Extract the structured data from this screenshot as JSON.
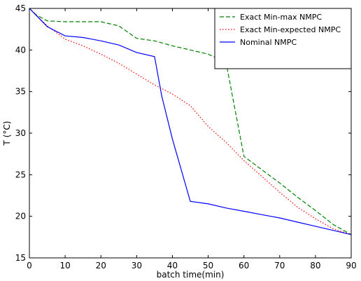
{
  "chart_data": {
    "type": "line",
    "title": "",
    "xlabel": "batch time(min)",
    "ylabel": "T (°C)",
    "xlim": [
      0,
      90
    ],
    "ylim": [
      15,
      45
    ],
    "xticks": [
      0,
      10,
      20,
      30,
      40,
      50,
      60,
      70,
      80,
      90
    ],
    "yticks": [
      15,
      20,
      25,
      30,
      35,
      40,
      45
    ],
    "grid": false,
    "legend_position": "top-right",
    "series": [
      {
        "name": "Exact Min-max NMPC",
        "color": "#008000",
        "line_style": "dashed",
        "x": [
          0,
          2,
          5,
          10,
          15,
          20,
          25,
          30,
          35,
          40,
          45,
          50,
          55,
          60,
          65,
          70,
          75,
          80,
          85,
          90
        ],
        "y": [
          45,
          44.2,
          43.5,
          43.4,
          43.4,
          43.4,
          42.9,
          41.4,
          41.1,
          40.5,
          40.0,
          39.5,
          38.5,
          27.2,
          25.6,
          24.0,
          22.3,
          20.7,
          19.0,
          17.8
        ]
      },
      {
        "name": "Exact Min-expected NMPC",
        "color": "#ff0000",
        "line_style": "dotted",
        "x": [
          0,
          5,
          10,
          15,
          20,
          25,
          30,
          35,
          40,
          45,
          50,
          55,
          60,
          65,
          70,
          75,
          80,
          85,
          90
        ],
        "y": [
          45,
          42.9,
          41.3,
          40.5,
          39.5,
          38.4,
          37.1,
          35.8,
          34.7,
          33.3,
          30.8,
          28.9,
          26.7,
          24.8,
          22.9,
          21.1,
          19.7,
          18.5,
          17.8
        ]
      },
      {
        "name": "Nominal NMPC",
        "color": "#0000ff",
        "line_style": "solid",
        "x": [
          0,
          5,
          10,
          15,
          20,
          25,
          30,
          35,
          37,
          40,
          45,
          50,
          55,
          60,
          65,
          70,
          75,
          80,
          85,
          90
        ],
        "y": [
          45,
          42.8,
          41.7,
          41.5,
          41.1,
          40.6,
          39.7,
          39.2,
          34.5,
          29.3,
          21.8,
          21.5,
          21.0,
          20.6,
          20.2,
          19.8,
          19.3,
          18.8,
          18.3,
          17.8
        ]
      }
    ]
  }
}
